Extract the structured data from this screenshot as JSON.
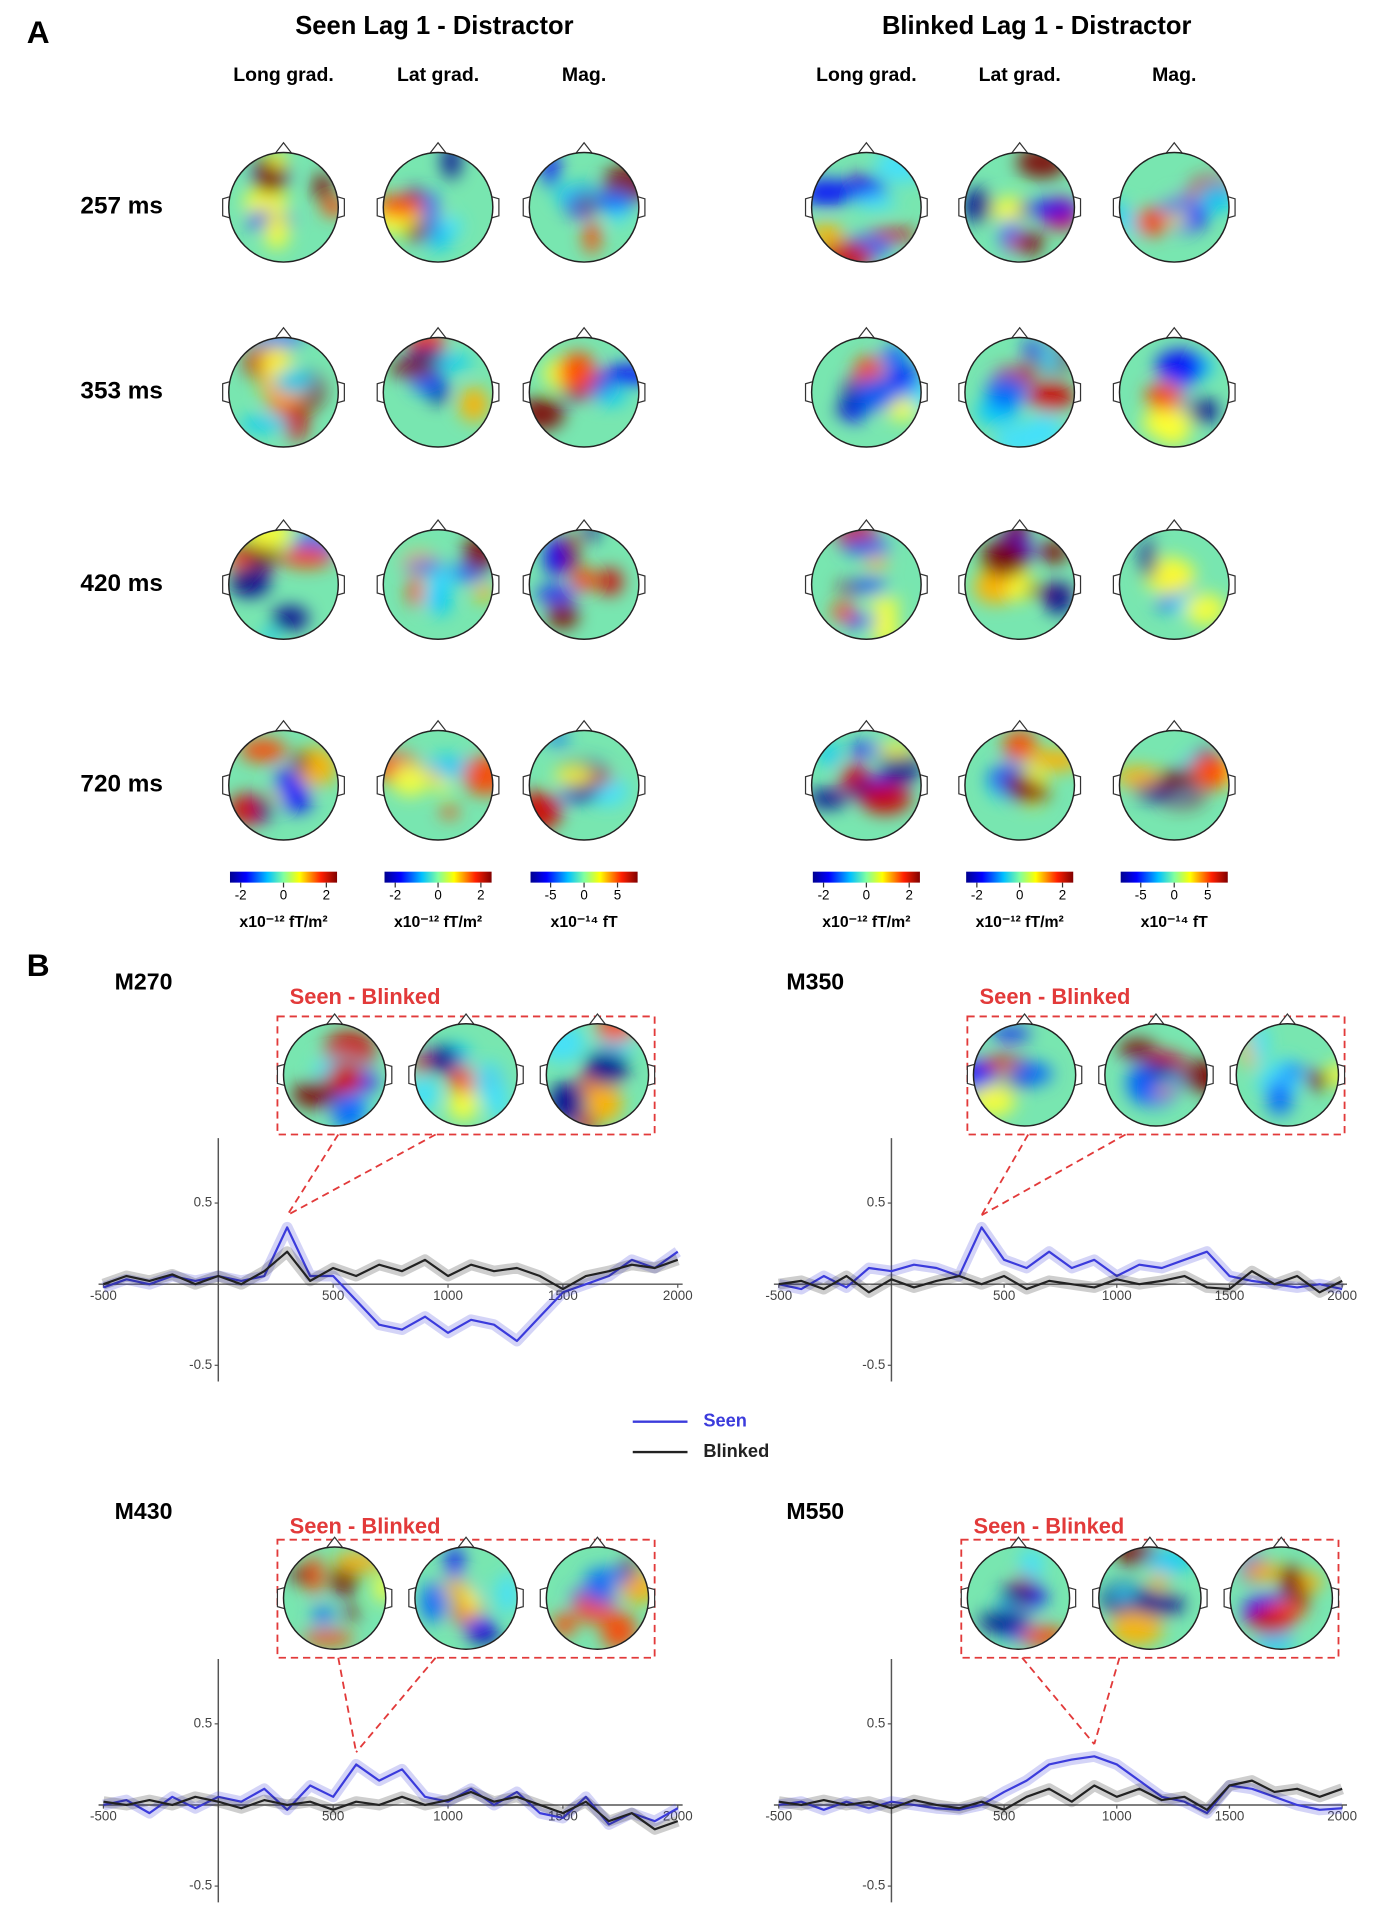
{
  "panel_a": {
    "label": "A",
    "groups": [
      {
        "title": "Seen Lag 1 - Distractor",
        "columns": [
          "Long grad.",
          "Lat grad.",
          "Mag."
        ]
      },
      {
        "title": "Blinked Lag 1 - Distractor",
        "columns": [
          "Long grad.",
          "Lat grad.",
          "Mag."
        ]
      }
    ],
    "rows": [
      "257 ms",
      "353 ms",
      "420 ms",
      "720 ms"
    ],
    "colorbars": [
      {
        "lim": [
          -2.5,
          2.5
        ],
        "ticks": [
          -2,
          0,
          2
        ],
        "label": "x10⁻¹² fT/m²"
      },
      {
        "lim": [
          -2.5,
          2.5
        ],
        "ticks": [
          -2,
          0,
          2
        ],
        "label": "x10⁻¹² fT/m²"
      },
      {
        "lim": [
          -8,
          8
        ],
        "ticks": [
          -5,
          0,
          5
        ],
        "label": "x10⁻¹⁴ fT"
      },
      {
        "lim": [
          -2.5,
          2.5
        ],
        "ticks": [
          -2,
          0,
          2
        ],
        "label": "x10⁻¹² fT/m²"
      },
      {
        "lim": [
          -2.5,
          2.5
        ],
        "ticks": [
          -2,
          0,
          2
        ],
        "label": "x10⁻¹² fT/m²"
      },
      {
        "lim": [
          -8,
          8
        ],
        "ticks": [
          -5,
          0,
          5
        ],
        "label": "x10⁻¹⁴ fT"
      }
    ]
  },
  "panel_b": {
    "label": "B",
    "legend": [
      {
        "name": "Seen",
        "color": "#3b3bdc"
      },
      {
        "name": "Blinked",
        "color": "#222222"
      }
    ]
  },
  "chart_data": [
    {
      "type": "line",
      "title": "M270",
      "annotation": "Seen - Blinked",
      "x": [
        -500,
        -400,
        -300,
        -200,
        -100,
        0,
        100,
        200,
        300,
        400,
        500,
        600,
        700,
        800,
        900,
        1000,
        1100,
        1200,
        1300,
        1400,
        1500,
        1600,
        1700,
        1800,
        1900,
        2000
      ],
      "series": [
        {
          "color": "#3b3bdc",
          "values": [
            -0.02,
            0.03,
            0,
            0.05,
            0.02,
            0.05,
            0.02,
            0.05,
            0.35,
            0.05,
            0.05,
            -0.1,
            -0.25,
            -0.28,
            -0.2,
            -0.3,
            -0.22,
            -0.25,
            -0.35,
            -0.2,
            -0.05,
            0,
            0.05,
            0.15,
            0.1,
            0.2
          ]
        },
        {
          "color": "#222222",
          "values": [
            0,
            0.05,
            0.02,
            0.06,
            0,
            0.05,
            0,
            0.08,
            0.2,
            0.02,
            0.1,
            0.05,
            0.12,
            0.08,
            0.15,
            0.05,
            0.12,
            0.08,
            0.1,
            0.05,
            -0.03,
            0.05,
            0.08,
            0.12,
            0.1,
            0.15
          ]
        }
      ],
      "xlim": [
        -500,
        2000
      ],
      "ylim": [
        -0.6,
        0.9
      ],
      "xticks": [
        -500,
        500,
        1000,
        1500,
        2000
      ],
      "yticks": [
        -0.5,
        0.5
      ]
    },
    {
      "type": "line",
      "title": "M350",
      "annotation": "Seen - Blinked",
      "x": [
        -500,
        -400,
        -300,
        -200,
        -100,
        0,
        100,
        200,
        300,
        400,
        500,
        600,
        700,
        800,
        900,
        1000,
        1100,
        1200,
        1300,
        1400,
        1500,
        1600,
        1700,
        1800,
        1900,
        2000
      ],
      "series": [
        {
          "color": "#3b3bdc",
          "values": [
            0,
            -0.03,
            0.05,
            -0.02,
            0.1,
            0.08,
            0.12,
            0.1,
            0.05,
            0.35,
            0.15,
            0.1,
            0.2,
            0.1,
            0.15,
            0.05,
            0.12,
            0.1,
            0.15,
            0.2,
            0.05,
            0.02,
            0,
            -0.02,
            0,
            -0.03
          ]
        },
        {
          "color": "#222222",
          "values": [
            0,
            0.02,
            -0.03,
            0.05,
            -0.05,
            0.03,
            -0.02,
            0.02,
            0.05,
            0,
            0.05,
            -0.03,
            0.02,
            0,
            -0.02,
            0.03,
            0,
            0.02,
            0.05,
            -0.02,
            -0.03,
            0.08,
            0,
            0.05,
            -0.05,
            0.02
          ]
        }
      ],
      "xlim": [
        -500,
        2000
      ],
      "ylim": [
        -0.6,
        0.9
      ],
      "xticks": [
        -500,
        500,
        1000,
        1500,
        2000
      ],
      "yticks": [
        -0.5,
        0.5
      ]
    },
    {
      "type": "line",
      "title": "M430",
      "annotation": "Seen - Blinked",
      "x": [
        -500,
        -400,
        -300,
        -200,
        -100,
        0,
        100,
        200,
        300,
        400,
        500,
        600,
        700,
        800,
        900,
        1000,
        1100,
        1200,
        1300,
        1400,
        1500,
        1600,
        1700,
        1800,
        1900,
        2000
      ],
      "series": [
        {
          "color": "#3b3bdc",
          "values": [
            0,
            0.03,
            -0.05,
            0.05,
            -0.02,
            0.05,
            0.02,
            0.1,
            -0.03,
            0.12,
            0.05,
            0.25,
            0.15,
            0.22,
            0.05,
            0.02,
            0.1,
            0,
            0.08,
            -0.05,
            -0.08,
            0.05,
            -0.12,
            -0.05,
            -0.1,
            -0.02
          ]
        },
        {
          "color": "#222222",
          "values": [
            0.02,
            0,
            0.03,
            0,
            0.05,
            0.02,
            -0.02,
            0.03,
            0,
            0.02,
            -0.03,
            0.02,
            0,
            0.05,
            0,
            0.03,
            0.08,
            0.02,
            0.05,
            0,
            -0.05,
            0.02,
            -0.1,
            -0.05,
            -0.15,
            -0.1
          ]
        }
      ],
      "xlim": [
        -500,
        2000
      ],
      "ylim": [
        -0.6,
        0.9
      ],
      "xticks": [
        -500,
        500,
        1000,
        1500,
        2000
      ],
      "yticks": [
        -0.5,
        0.5
      ]
    },
    {
      "type": "line",
      "title": "M550",
      "annotation": "Seen - Blinked",
      "x": [
        -500,
        -400,
        -300,
        -200,
        -100,
        0,
        100,
        200,
        300,
        400,
        500,
        600,
        700,
        800,
        900,
        1000,
        1100,
        1200,
        1300,
        1400,
        1500,
        1600,
        1700,
        1800,
        1900,
        2000
      ],
      "series": [
        {
          "color": "#3b3bdc",
          "values": [
            0,
            0.02,
            -0.03,
            0.02,
            -0.02,
            0.02,
            0,
            -0.02,
            -0.03,
            0,
            0.08,
            0.15,
            0.25,
            0.28,
            0.3,
            0.25,
            0.15,
            0.05,
            0.02,
            -0.05,
            0.12,
            0.1,
            0.05,
            0,
            -0.03,
            -0.02
          ]
        },
        {
          "color": "#222222",
          "values": [
            0.02,
            0,
            0.03,
            0,
            0.02,
            -0.02,
            0.03,
            0,
            -0.02,
            0.02,
            -0.03,
            0.05,
            0.1,
            0.02,
            0.12,
            0.05,
            0.1,
            0.03,
            0.05,
            -0.03,
            0.12,
            0.15,
            0.08,
            0.1,
            0.05,
            0.1
          ]
        }
      ],
      "xlim": [
        -500,
        2000
      ],
      "ylim": [
        -0.6,
        0.9
      ],
      "xticks": [
        -500,
        500,
        1000,
        1500,
        2000
      ],
      "yticks": [
        -0.5,
        0.5
      ]
    }
  ]
}
